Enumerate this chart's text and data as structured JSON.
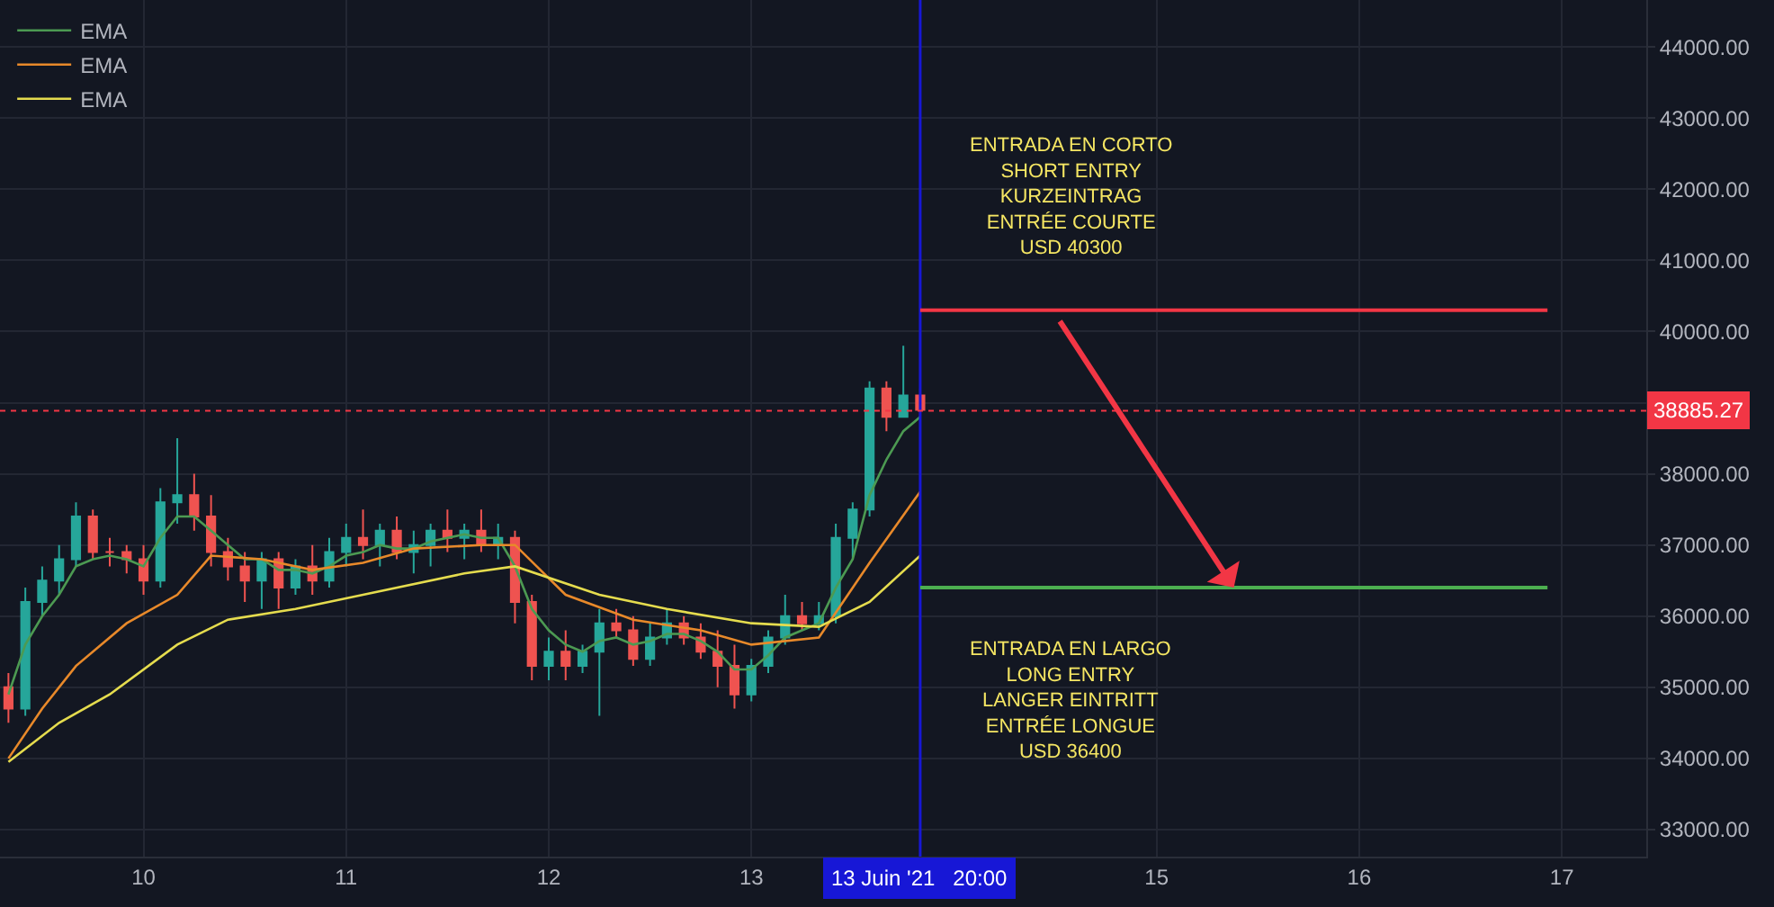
{
  "chart_data": {
    "type": "candlestick",
    "x": [
      "2021-06-09T08:00",
      "2021-06-09T10:00",
      "2021-06-09T12:00",
      "2021-06-09T14:00",
      "2021-06-09T16:00",
      "2021-06-09T18:00",
      "2021-06-09T20:00",
      "2021-06-09T22:00",
      "2021-06-10T00:00",
      "2021-06-10T02:00",
      "2021-06-10T04:00",
      "2021-06-10T06:00",
      "2021-06-10T08:00",
      "2021-06-10T10:00",
      "2021-06-10T12:00",
      "2021-06-10T14:00",
      "2021-06-10T16:00",
      "2021-06-10T18:00",
      "2021-06-10T20:00",
      "2021-06-10T22:00",
      "2021-06-11T00:00",
      "2021-06-11T02:00",
      "2021-06-11T04:00",
      "2021-06-11T06:00",
      "2021-06-11T08:00",
      "2021-06-11T10:00",
      "2021-06-11T12:00",
      "2021-06-11T14:00",
      "2021-06-11T16:00",
      "2021-06-11T18:00",
      "2021-06-11T20:00",
      "2021-06-11T22:00",
      "2021-06-12T00:00",
      "2021-06-12T02:00",
      "2021-06-12T04:00",
      "2021-06-12T06:00",
      "2021-06-12T08:00",
      "2021-06-12T10:00",
      "2021-06-12T12:00",
      "2021-06-12T14:00",
      "2021-06-12T16:00",
      "2021-06-12T18:00",
      "2021-06-12T20:00",
      "2021-06-12T22:00",
      "2021-06-13T00:00",
      "2021-06-13T02:00",
      "2021-06-13T04:00",
      "2021-06-13T06:00",
      "2021-06-13T08:00",
      "2021-06-13T10:00",
      "2021-06-13T12:00",
      "2021-06-13T14:00",
      "2021-06-13T16:00",
      "2021-06-13T18:00",
      "2021-06-13T20:00"
    ],
    "ohlc": [
      [
        35000,
        35200,
        34500,
        34700
      ],
      [
        34700,
        36400,
        34600,
        36200
      ],
      [
        36200,
        36700,
        36000,
        36500
      ],
      [
        36500,
        37000,
        36300,
        36800
      ],
      [
        36800,
        37600,
        36700,
        37400
      ],
      [
        37400,
        37500,
        36800,
        36900
      ],
      [
        36900,
        37100,
        36700,
        36900
      ],
      [
        36900,
        37000,
        36600,
        36800
      ],
      [
        36800,
        37000,
        36300,
        36500
      ],
      [
        36500,
        37800,
        36400,
        37600
      ],
      [
        37600,
        38500,
        37300,
        37700
      ],
      [
        37700,
        38000,
        37200,
        37400
      ],
      [
        37400,
        37700,
        36700,
        36900
      ],
      [
        36900,
        37100,
        36500,
        36700
      ],
      [
        36700,
        36900,
        36200,
        36500
      ],
      [
        36500,
        36900,
        36100,
        36800
      ],
      [
        36800,
        36900,
        36100,
        36400
      ],
      [
        36400,
        36800,
        36300,
        36700
      ],
      [
        36700,
        37000,
        36300,
        36500
      ],
      [
        36500,
        37100,
        36400,
        36900
      ],
      [
        36900,
        37300,
        36700,
        37100
      ],
      [
        37100,
        37500,
        36800,
        37000
      ],
      [
        37000,
        37300,
        36700,
        37200
      ],
      [
        37200,
        37400,
        36800,
        36900
      ],
      [
        36900,
        37200,
        36600,
        37000
      ],
      [
        37000,
        37300,
        36700,
        37200
      ],
      [
        37200,
        37500,
        36900,
        37100
      ],
      [
        37100,
        37300,
        36800,
        37200
      ],
      [
        37200,
        37500,
        36900,
        37000
      ],
      [
        37000,
        37300,
        36800,
        37100
      ],
      [
        37100,
        37200,
        35900,
        36200
      ],
      [
        36200,
        36300,
        35100,
        35300
      ],
      [
        35300,
        35700,
        35100,
        35500
      ],
      [
        35500,
        35800,
        35100,
        35300
      ],
      [
        35300,
        35600,
        35200,
        35500
      ],
      [
        35500,
        36100,
        34600,
        35900
      ],
      [
        35900,
        36100,
        35700,
        35800
      ],
      [
        35800,
        36000,
        35300,
        35400
      ],
      [
        35400,
        35900,
        35300,
        35700
      ],
      [
        35700,
        36100,
        35600,
        35900
      ],
      [
        35900,
        36000,
        35600,
        35700
      ],
      [
        35700,
        35900,
        35400,
        35500
      ],
      [
        35500,
        35800,
        35000,
        35300
      ],
      [
        35300,
        35600,
        34700,
        34900
      ],
      [
        34900,
        35400,
        34800,
        35300
      ],
      [
        35300,
        35800,
        35200,
        35700
      ],
      [
        35700,
        36300,
        35600,
        36000
      ],
      [
        36000,
        36200,
        35800,
        35900
      ],
      [
        35900,
        36200,
        35800,
        36000
      ],
      [
        36000,
        37300,
        35900,
        37100
      ],
      [
        37100,
        37600,
        36800,
        37500
      ],
      [
        37500,
        39300,
        37400,
        39200
      ],
      [
        39200,
        39300,
        38600,
        38800
      ],
      [
        38800,
        39800,
        38800,
        39100
      ],
      [
        39100,
        39200,
        38800,
        38900
      ]
    ],
    "colors": [
      "#ef5350",
      "#26a69a",
      "#26a69a",
      "#26a69a",
      "#26a69a",
      "#ef5350",
      "#ef5350",
      "#ef5350",
      "#ef5350",
      "#26a69a",
      "#26a69a",
      "#ef5350",
      "#ef5350",
      "#ef5350",
      "#ef5350",
      "#26a69a",
      "#ef5350",
      "#26a69a",
      "#ef5350",
      "#26a69a",
      "#26a69a",
      "#ef5350",
      "#26a69a",
      "#ef5350",
      "#26a69a",
      "#26a69a",
      "#ef5350",
      "#26a69a",
      "#ef5350",
      "#26a69a",
      "#ef5350",
      "#ef5350",
      "#26a69a",
      "#ef5350",
      "#26a69a",
      "#26a69a",
      "#ef5350",
      "#ef5350",
      "#26a69a",
      "#26a69a",
      "#ef5350",
      "#ef5350",
      "#ef5350",
      "#ef5350",
      "#26a69a",
      "#26a69a",
      "#26a69a",
      "#ef5350",
      "#26a69a",
      "#26a69a",
      "#26a69a",
      "#26a69a",
      "#ef5350",
      "#26a69a",
      "#ef5350"
    ],
    "series": [
      {
        "name": "EMA",
        "type": "line",
        "color": "#4c9a52",
        "x": [
          "2021-06-09T08:00",
          "2021-06-09T10:00",
          "2021-06-09T12:00",
          "2021-06-09T14:00",
          "2021-06-09T16:00",
          "2021-06-09T18:00",
          "2021-06-09T20:00",
          "2021-06-09T22:00",
          "2021-06-10T00:00",
          "2021-06-10T02:00",
          "2021-06-10T04:00",
          "2021-06-10T06:00",
          "2021-06-10T08:00",
          "2021-06-10T10:00",
          "2021-06-10T12:00",
          "2021-06-10T14:00",
          "2021-06-10T16:00",
          "2021-06-10T18:00",
          "2021-06-10T20:00",
          "2021-06-10T22:00",
          "2021-06-11T00:00",
          "2021-06-11T02:00",
          "2021-06-11T04:00",
          "2021-06-11T06:00",
          "2021-06-11T08:00",
          "2021-06-11T10:00",
          "2021-06-11T12:00",
          "2021-06-11T14:00",
          "2021-06-11T16:00",
          "2021-06-11T18:00",
          "2021-06-11T20:00",
          "2021-06-11T22:00",
          "2021-06-12T00:00",
          "2021-06-12T02:00",
          "2021-06-12T04:00",
          "2021-06-12T06:00",
          "2021-06-12T08:00",
          "2021-06-12T10:00",
          "2021-06-12T12:00",
          "2021-06-12T14:00",
          "2021-06-12T16:00",
          "2021-06-12T18:00",
          "2021-06-12T20:00",
          "2021-06-12T22:00",
          "2021-06-13T00:00",
          "2021-06-13T02:00",
          "2021-06-13T04:00",
          "2021-06-13T06:00",
          "2021-06-13T08:00",
          "2021-06-13T10:00",
          "2021-06-13T12:00",
          "2021-06-13T14:00",
          "2021-06-13T16:00",
          "2021-06-13T18:00",
          "2021-06-13T20:00"
        ],
        "values": [
          34900,
          35600,
          36000,
          36300,
          36700,
          36800,
          36850,
          36800,
          36700,
          37100,
          37400,
          37400,
          37200,
          37000,
          36800,
          36800,
          36650,
          36650,
          36600,
          36700,
          36850,
          36900,
          37000,
          36950,
          36950,
          37050,
          37100,
          37150,
          37100,
          37100,
          36700,
          36100,
          35800,
          35600,
          35500,
          35650,
          35700,
          35600,
          35650,
          35750,
          35750,
          35650,
          35500,
          35250,
          35250,
          35450,
          35700,
          35800,
          35900,
          36400,
          36800,
          37700,
          38200,
          38600,
          38800
        ]
      },
      {
        "name": "EMA",
        "type": "line",
        "color": "#e8892a",
        "x": [
          "2021-06-09T08:00",
          "2021-06-09T12:00",
          "2021-06-09T16:00",
          "2021-06-09T22:00",
          "2021-06-10T04:00",
          "2021-06-10T08:00",
          "2021-06-10T14:00",
          "2021-06-10T20:00",
          "2021-06-11T02:00",
          "2021-06-11T08:00",
          "2021-06-11T16:00",
          "2021-06-11T20:00",
          "2021-06-12T02:00",
          "2021-06-12T10:00",
          "2021-06-12T18:00",
          "2021-06-13T00:00",
          "2021-06-13T08:00",
          "2021-06-13T14:00",
          "2021-06-13T20:00"
        ],
        "values": [
          34000,
          34700,
          35300,
          35900,
          36300,
          36850,
          36800,
          36650,
          36750,
          36950,
          37000,
          37000,
          36300,
          35950,
          35800,
          35600,
          35700,
          36750,
          37750
        ]
      },
      {
        "name": "EMA",
        "type": "line",
        "color": "#e5dc4e",
        "x": [
          "2021-06-09T08:00",
          "2021-06-09T14:00",
          "2021-06-09T20:00",
          "2021-06-10T04:00",
          "2021-06-10T10:00",
          "2021-06-10T18:00",
          "2021-06-11T02:00",
          "2021-06-11T14:00",
          "2021-06-11T20:00",
          "2021-06-12T06:00",
          "2021-06-12T14:00",
          "2021-06-13T00:00",
          "2021-06-13T08:00",
          "2021-06-13T14:00",
          "2021-06-13T20:00"
        ],
        "values": [
          33950,
          34500,
          34900,
          35600,
          35950,
          36100,
          36300,
          36600,
          36700,
          36300,
          36100,
          35900,
          35850,
          36200,
          36850
        ]
      }
    ],
    "ref_lines": [
      {
        "axis": "x",
        "value": "2021-06-13T20:00",
        "label": "13 Juin '21   20:00",
        "color": "#1717d6"
      },
      {
        "axis": "y",
        "value": 38885.27,
        "label": "38885.27",
        "color": "#f23645",
        "line_style": "dotted"
      },
      {
        "axis": "y",
        "value": 40300,
        "label": "ENTRADA EN CORTO\nSHORT ENTRY\nKURZEINTRAG\nENTRÉE COURTE\nUSD 40300",
        "color": "#f23645"
      },
      {
        "axis": "y",
        "value": 36400,
        "label": "ENTRADA EN LARGO\nLONG ENTRY\nLANGER EINTRITT\nENTRÉE LONGUE\nUSD 36400",
        "color": "#4caf50"
      }
    ],
    "xlim": [
      "2021-06-09T07:00",
      "2021-06-17T10:00"
    ],
    "xticks": [
      {
        "value": "2021-06-10",
        "label": "10"
      },
      {
        "value": "2021-06-11",
        "label": "11"
      },
      {
        "value": "2021-06-12",
        "label": "12"
      },
      {
        "value": "2021-06-13",
        "label": "13"
      },
      {
        "value": "2021-06-15",
        "label": "15"
      },
      {
        "value": "2021-06-16",
        "label": "16"
      },
      {
        "value": "2021-06-17",
        "label": "17"
      }
    ],
    "ylim": [
      32620,
      44660
    ],
    "yticks": [
      {
        "value": 33000,
        "label": "33000.00"
      },
      {
        "value": 34000,
        "label": "34000.00"
      },
      {
        "value": 35000,
        "label": "35000.00"
      },
      {
        "value": 36000,
        "label": "36000.00"
      },
      {
        "value": 37000,
        "label": "37000.00"
      },
      {
        "value": 38000,
        "label": "38000.00"
      },
      {
        "value": 39000,
        "label": null
      },
      {
        "value": 40000,
        "label": "40000.00"
      },
      {
        "value": 41000,
        "label": "41000.00"
      },
      {
        "value": 42000,
        "label": "42000.00"
      },
      {
        "value": 43000,
        "label": "43000.00"
      },
      {
        "value": 44000,
        "label": "44000.00"
      }
    ],
    "grid": true,
    "legend": "top left"
  }
}
